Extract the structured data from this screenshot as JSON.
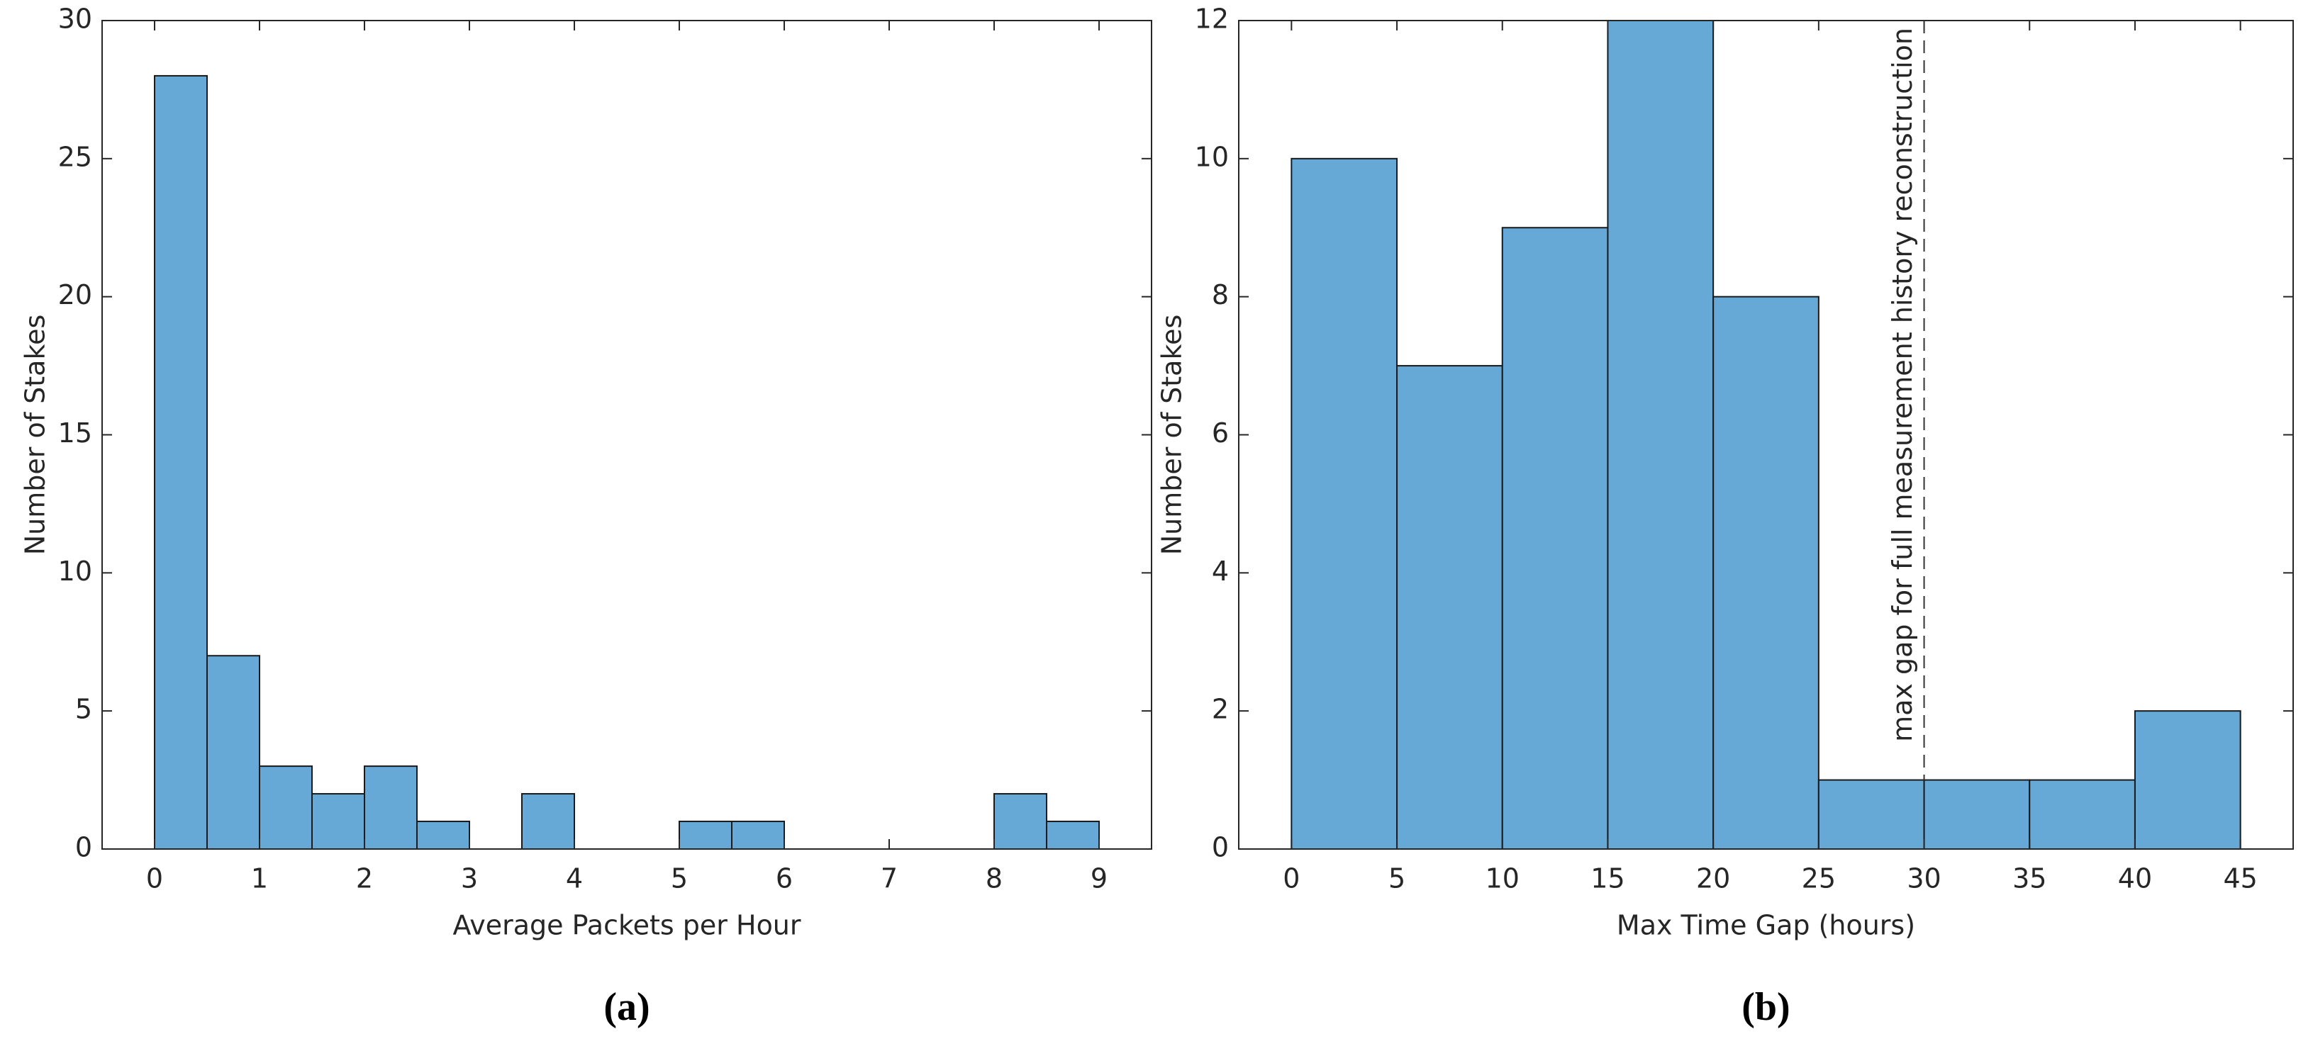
{
  "chart_data": [
    {
      "type": "histogram",
      "label": "(a)",
      "x_label": "Average Packets per Hour",
      "y_label": "Number of Stakes",
      "bins": [
        0,
        0.5,
        1,
        1.5,
        2,
        2.5,
        3,
        3.5,
        4,
        4.5,
        5,
        5.5,
        6,
        6.5,
        7,
        7.5,
        8,
        8.5,
        9
      ],
      "values": [
        28,
        7,
        3,
        2,
        3,
        1,
        0,
        2,
        0,
        0,
        1,
        1,
        0,
        0,
        0,
        0,
        2,
        1
      ],
      "color": "#66a9d6",
      "xlim": [
        -0.5,
        9.5
      ],
      "xticks": [
        0,
        1,
        2,
        3,
        4,
        5,
        6,
        7,
        8,
        9
      ],
      "ylim": [
        0,
        30
      ],
      "yticks": [
        0,
        5,
        10,
        15,
        20,
        25,
        30
      ]
    },
    {
      "type": "histogram",
      "label": "(b)",
      "x_label": "Max Time Gap (hours)",
      "y_label": "Number of Stakes",
      "bins": [
        0,
        5,
        10,
        15,
        20,
        25,
        30,
        35,
        40,
        45
      ],
      "values": [
        10,
        7,
        9,
        12,
        8,
        1,
        1,
        1,
        2
      ],
      "color": "#66a9d6",
      "xlim": [
        -2.5,
        47.5
      ],
      "xticks": [
        0,
        5,
        10,
        15,
        20,
        25,
        30,
        35,
        40,
        45
      ],
      "ylim": [
        0,
        12
      ],
      "yticks": [
        0,
        2,
        4,
        6,
        8,
        10,
        12
      ],
      "annotation": {
        "text": "max gap for full measurement history reconstruction",
        "x": 30
      }
    }
  ]
}
